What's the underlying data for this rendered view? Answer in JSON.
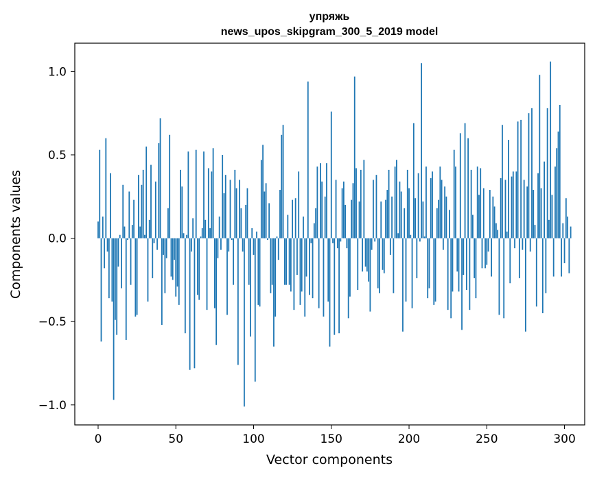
{
  "chart_data": {
    "type": "bar",
    "title_lines": [
      "упряжь",
      "news_upos_skipgram_300_5_2019 model"
    ],
    "xlabel": "Vector components",
    "ylabel": "Components values",
    "xlim": [
      -15,
      313
    ],
    "ylim": [
      -1.12,
      1.17
    ],
    "xticks": [
      0,
      50,
      100,
      150,
      200,
      250,
      300
    ],
    "xtick_labels": [
      "0",
      "50",
      "100",
      "150",
      "200",
      "250",
      "300"
    ],
    "yticks": [
      -1.0,
      -0.5,
      0.0,
      0.5,
      1.0
    ],
    "ytick_labels": [
      "−1.0",
      "−0.5",
      "0.0",
      "0.5",
      "1.0"
    ],
    "bar_color": "#1f77b4",
    "values": [
      0.1,
      0.53,
      -0.62,
      0.13,
      -0.18,
      0.6,
      -0.08,
      -0.36,
      0.39,
      -0.38,
      -0.97,
      -0.49,
      -0.58,
      -0.17,
      0.02,
      -0.3,
      0.32,
      0.07,
      -0.61,
      -0.01,
      0.28,
      -0.28,
      0.08,
      0.23,
      -0.47,
      -0.46,
      0.38,
      0.07,
      0.32,
      0.41,
      0.02,
      0.55,
      -0.38,
      0.11,
      0.44,
      -0.24,
      -0.03,
      0.34,
      -0.07,
      0.57,
      0.72,
      -0.52,
      -0.1,
      -0.33,
      -0.12,
      0.18,
      0.62,
      -0.23,
      -0.25,
      -0.13,
      -0.35,
      -0.29,
      -0.4,
      0.41,
      0.31,
      0.03,
      -0.57,
      0.02,
      0.52,
      -0.79,
      -0.08,
      0.12,
      -0.78,
      0.53,
      -0.34,
      -0.37,
      0.01,
      0.06,
      0.52,
      0.11,
      -0.43,
      0.42,
      0.06,
      0.4,
      0.54,
      -0.42,
      -0.64,
      -0.12,
      0.13,
      -0.07,
      0.5,
      0.27,
      0.38,
      -0.46,
      -0.08,
      0.35,
      -0.01,
      -0.28,
      0.41,
      0.3,
      -0.76,
      0.35,
      0.18,
      -0.08,
      -1.01,
      0.2,
      0.3,
      -0.28,
      -0.59,
      0.06,
      -0.1,
      -0.86,
      0.04,
      -0.4,
      -0.41,
      0.47,
      0.56,
      0.28,
      0.33,
      -0.01,
      0.21,
      -0.33,
      -0.28,
      -0.65,
      -0.47,
      0.01,
      -0.13,
      0.29,
      0.62,
      0.68,
      -0.28,
      -0.28,
      0.14,
      -0.28,
      -0.32,
      0.23,
      -0.43,
      0.24,
      -0.22,
      0.4,
      -0.4,
      -0.32,
      0.13,
      -0.47,
      -0.23,
      0.94,
      -0.34,
      -0.03,
      -0.36,
      0.09,
      0.18,
      0.43,
      -0.42,
      0.45,
      0.34,
      -0.47,
      0.25,
      0.45,
      -0.38,
      -0.65,
      0.76,
      -0.03,
      -0.58,
      0.35,
      -0.06,
      -0.57,
      -0.02,
      0.3,
      0.34,
      0.2,
      -0.06,
      -0.48,
      -0.35,
      0.23,
      0.33,
      0.97,
      0.42,
      -0.31,
      0.22,
      0.41,
      -0.2,
      0.47,
      -0.17,
      -0.2,
      -0.26,
      -0.44,
      -0.07,
      0.35,
      -0.02,
      0.38,
      -0.3,
      -0.33,
      0.22,
      -0.19,
      -0.21,
      0.23,
      0.29,
      0.41,
      -0.1,
      0.25,
      -0.33,
      0.43,
      0.47,
      0.03,
      0.34,
      0.28,
      -0.56,
      0.18,
      -0.38,
      0.41,
      0.3,
      0.02,
      -0.42,
      0.69,
      0.24,
      -0.24,
      0.39,
      -0.02,
      1.05,
      0.22,
      0.01,
      0.43,
      -0.36,
      -0.3,
      0.36,
      0.4,
      -0.4,
      -0.38,
      0.18,
      0.23,
      0.43,
      0.35,
      -0.07,
      0.31,
      0.25,
      -0.43,
      0.17,
      -0.48,
      -0.32,
      0.53,
      0.43,
      -0.2,
      -0.32,
      0.63,
      -0.55,
      -0.22,
      0.69,
      -0.31,
      0.6,
      -0.43,
      0.41,
      0.14,
      -0.24,
      -0.36,
      0.43,
      0.26,
      0.42,
      -0.18,
      0.3,
      -0.18,
      -0.16,
      -0.08,
      0.29,
      -0.23,
      0.25,
      0.19,
      0.09,
      0.05,
      -0.46,
      0.36,
      0.68,
      -0.48,
      0.35,
      0.04,
      0.59,
      -0.27,
      0.37,
      0.4,
      -0.06,
      0.4,
      0.7,
      -0.24,
      0.71,
      -0.07,
      0.35,
      -0.56,
      0.31,
      0.75,
      -0.08,
      0.78,
      0.29,
      0.08,
      -0.41,
      0.39,
      0.98,
      0.3,
      -0.45,
      0.46,
      -0.33,
      0.78,
      0.11,
      1.06,
      0.26,
      -0.23,
      0.43,
      0.54,
      0.64,
      0.8,
      -0.23,
      0.09,
      -0.15,
      0.24,
      0.13,
      -0.21,
      0.07
    ]
  }
}
